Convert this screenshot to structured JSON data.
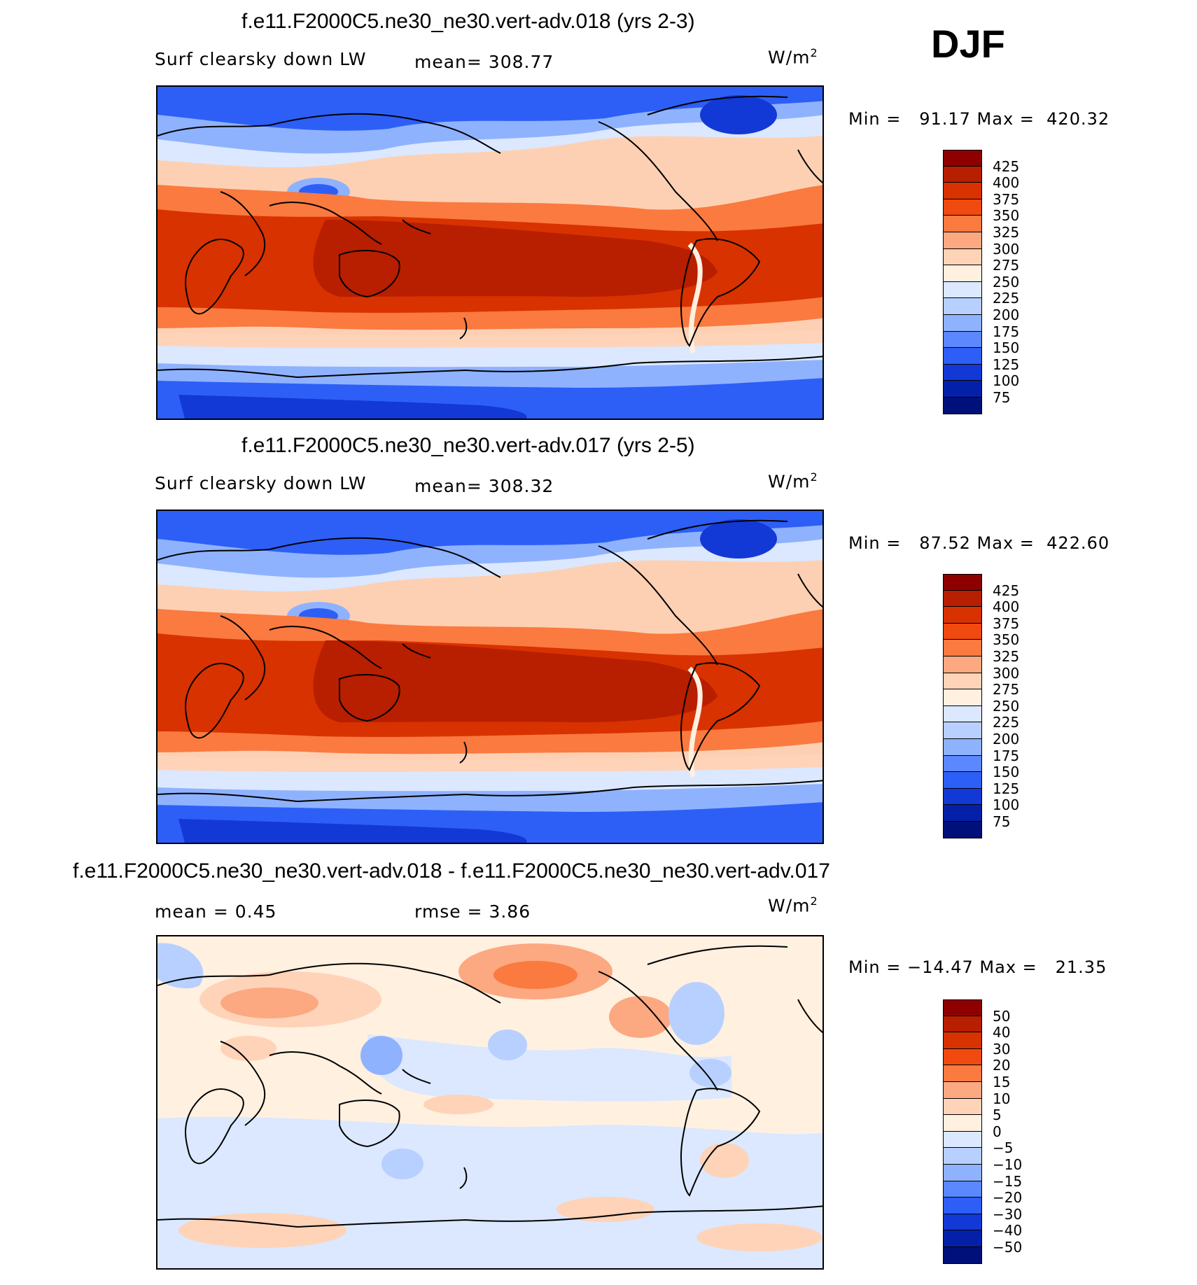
{
  "season": "DJF",
  "panels": [
    {
      "id": "panel-018",
      "title": "f.e11.F2000C5.ne30_ne30.vert-adv.018 (yrs 2-3)",
      "subtitle_left": "Surf clearsky down LW",
      "subtitle_mid": "mean= 308.77",
      "units": "W/m",
      "units_sup": "2",
      "minmax": "Min =   91.17 Max =  420.32",
      "colorbar": {
        "labels": [
          "425",
          "400",
          "375",
          "350",
          "325",
          "300",
          "275",
          "250",
          "225",
          "200",
          "175",
          "150",
          "125",
          "100",
          "75"
        ],
        "colors": [
          "#8e0000",
          "#b81e00",
          "#d83200",
          "#f04a10",
          "#fa7a40",
          "#fca880",
          "#fed3b8",
          "#fff0e0",
          "#dbe8ff",
          "#b7d0ff",
          "#8fb2ff",
          "#5b87ff",
          "#2d5ff6",
          "#1238d6",
          "#0520a8",
          "#00107a"
        ]
      }
    },
    {
      "id": "panel-017",
      "title": "f.e11.F2000C5.ne30_ne30.vert-adv.017 (yrs 2-5)",
      "subtitle_left": "Surf clearsky down LW",
      "subtitle_mid": "mean= 308.32",
      "units": "W/m",
      "units_sup": "2",
      "minmax": "Min =   87.52 Max =  422.60",
      "colorbar": {
        "labels": [
          "425",
          "400",
          "375",
          "350",
          "325",
          "300",
          "275",
          "250",
          "225",
          "200",
          "175",
          "150",
          "125",
          "100",
          "75"
        ],
        "colors": [
          "#8e0000",
          "#b81e00",
          "#d83200",
          "#f04a10",
          "#fa7a40",
          "#fca880",
          "#fed3b8",
          "#fff0e0",
          "#dbe8ff",
          "#b7d0ff",
          "#8fb2ff",
          "#5b87ff",
          "#2d5ff6",
          "#1238d6",
          "#0520a8",
          "#00107a"
        ]
      }
    },
    {
      "id": "panel-diff",
      "title": "f.e11.F2000C5.ne30_ne30.vert-adv.018 - f.e11.F2000C5.ne30_ne30.vert-adv.017",
      "subtitle_left": "mean =    0.45",
      "subtitle_mid": "rmse =    3.86",
      "units": "W/m",
      "units_sup": "2",
      "minmax": "Min = −14.47 Max =   21.35",
      "colorbar": {
        "labels": [
          "50",
          "40",
          "30",
          "20",
          "15",
          "10",
          "5",
          "0",
          "−5",
          "−10",
          "−15",
          "−20",
          "−30",
          "−40",
          "−50"
        ],
        "colors": [
          "#8e0000",
          "#b81e00",
          "#d83200",
          "#f04a10",
          "#fa7a40",
          "#fca880",
          "#fed3b8",
          "#fff0e0",
          "#dbe8ff",
          "#b7d0ff",
          "#8fb2ff",
          "#5b87ff",
          "#2d5ff6",
          "#1238d6",
          "#0520a8",
          "#00107a"
        ]
      }
    }
  ]
}
